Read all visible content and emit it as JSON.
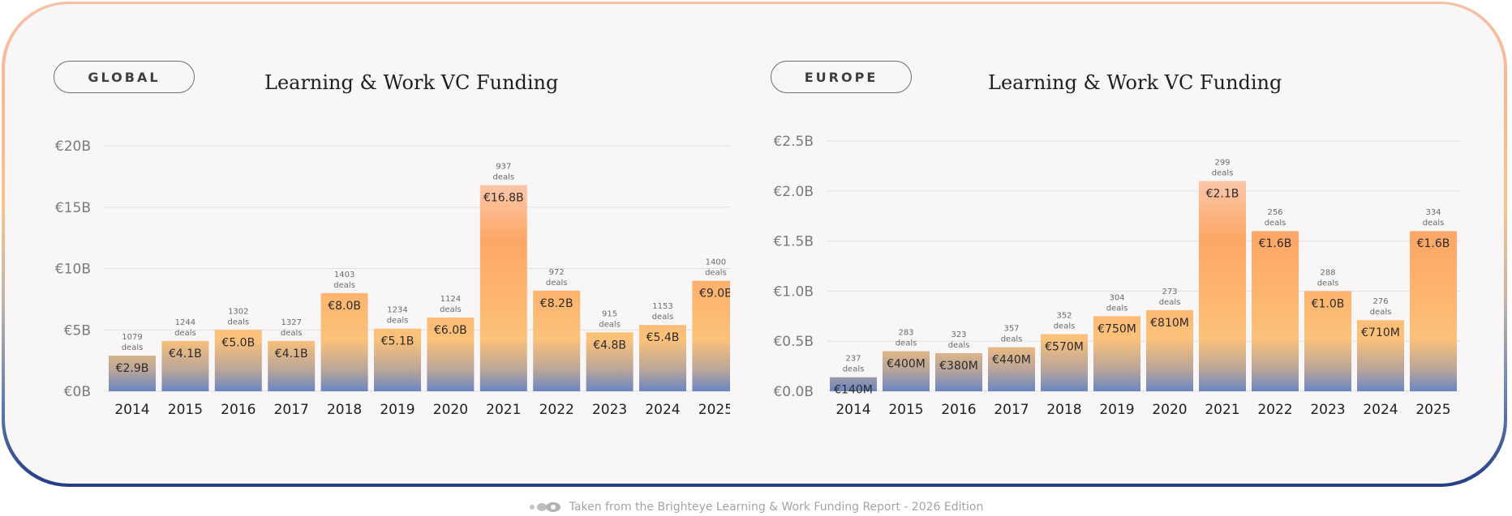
{
  "footer": {
    "icon": "brighteye-logo-icon",
    "text": "Taken from the Brighteye Learning & Work Funding Report - 2026 Edition"
  },
  "colors": {
    "bar_top": "#fcc8ad",
    "bar_mid": "#fdb56f",
    "bar_bottom": "#6a86c2",
    "gridline": "#e1dfe1",
    "axis_text": "#7a7a7a"
  },
  "chart_data": [
    {
      "type": "bar",
      "region": "GLOBAL",
      "title": "Learning & Work VC Funding",
      "categories": [
        "2014",
        "2015",
        "2016",
        "2017",
        "2018",
        "2019",
        "2020",
        "2021",
        "2022",
        "2023",
        "2024",
        "2025"
      ],
      "values": [
        2.9,
        4.1,
        5.0,
        4.1,
        8.0,
        5.1,
        6.0,
        16.8,
        8.2,
        4.8,
        5.4,
        9.0
      ],
      "unit": "EUR billions",
      "value_labels": [
        "€2.9B",
        "€4.1B",
        "€5.0B",
        "€4.1B",
        "€8.0B",
        "€5.1B",
        "€6.0B",
        "€16.8B",
        "€8.2B",
        "€4.8B",
        "€5.4B",
        "€9.0B"
      ],
      "deals": [
        "1079",
        "1244",
        "1302",
        "1327",
        "1403",
        "1234",
        "1124",
        "937",
        "972",
        "915",
        "1153",
        "1400"
      ],
      "deals_word": "deals",
      "ylim": [
        0,
        20
      ],
      "yticks": [
        0,
        5,
        10,
        15,
        20
      ],
      "ytick_labels": [
        "€0B",
        "€5B",
        "€10B",
        "€15B",
        "€20B"
      ],
      "grid": true
    },
    {
      "type": "bar",
      "region": "EUROPE",
      "title": "Learning & Work VC Funding",
      "categories": [
        "2014",
        "2015",
        "2016",
        "2017",
        "2018",
        "2019",
        "2020",
        "2021",
        "2022",
        "2023",
        "2024",
        "2025"
      ],
      "values": [
        0.14,
        0.4,
        0.38,
        0.44,
        0.57,
        0.75,
        0.81,
        2.1,
        1.6,
        1.0,
        0.71,
        1.6
      ],
      "unit": "EUR billions",
      "value_labels": [
        "€140M",
        "€400M",
        "€380M",
        "€440M",
        "€570M",
        "€750M",
        "€810M",
        "€2.1B",
        "€1.6B",
        "€1.0B",
        "€710M",
        "€1.6B"
      ],
      "deals": [
        "237",
        "283",
        "323",
        "357",
        "352",
        "304",
        "273",
        "299",
        "256",
        "288",
        "276",
        "334"
      ],
      "deals_word": "deals",
      "ylim": [
        0,
        2.5
      ],
      "yticks": [
        0,
        0.5,
        1.0,
        1.5,
        2.0,
        2.5
      ],
      "ytick_labels": [
        "€0.0B",
        "€0.5B",
        "€1.0B",
        "€1.5B",
        "€2.0B",
        "€2.5B"
      ],
      "grid": true
    }
  ]
}
